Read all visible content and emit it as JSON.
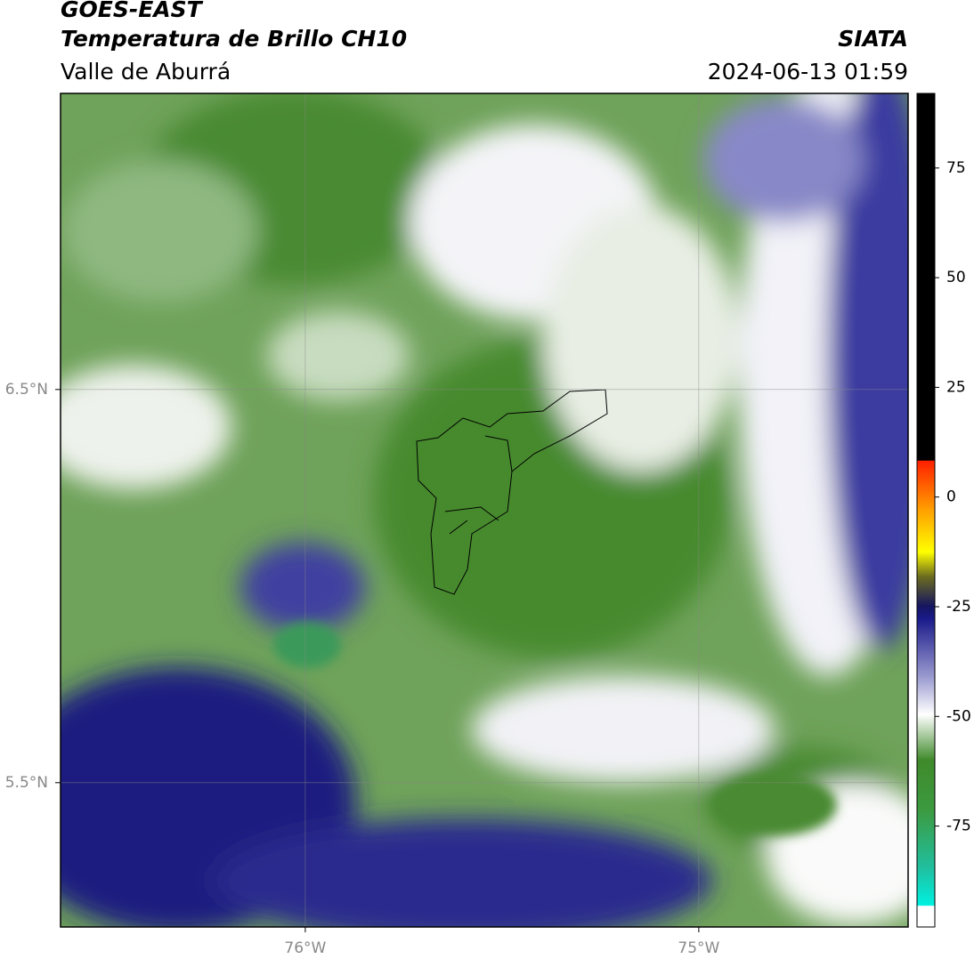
{
  "header": {
    "title": "GOES-EAST",
    "subtitle": "Temperatura de Brillo CH10",
    "region": "Valle de Aburrá",
    "source": "SIATA",
    "datetime": "2024-06-13 01:59"
  },
  "map": {
    "lat_range": [
      5.133,
      7.253
    ],
    "lon_range": [
      -76.622,
      -74.468
    ],
    "lat_ticks": [
      {
        "value": 6.5,
        "label": "6.5°N"
      },
      {
        "value": 5.5,
        "label": "5.5°N"
      }
    ],
    "lon_ticks": [
      {
        "value": -76,
        "label": "76°W"
      },
      {
        "value": -75,
        "label": "75°W"
      }
    ]
  },
  "colorbar": {
    "range": [
      -98,
      92
    ],
    "ticks": [
      75,
      50,
      25,
      0,
      -25,
      -50,
      -75
    ]
  }
}
